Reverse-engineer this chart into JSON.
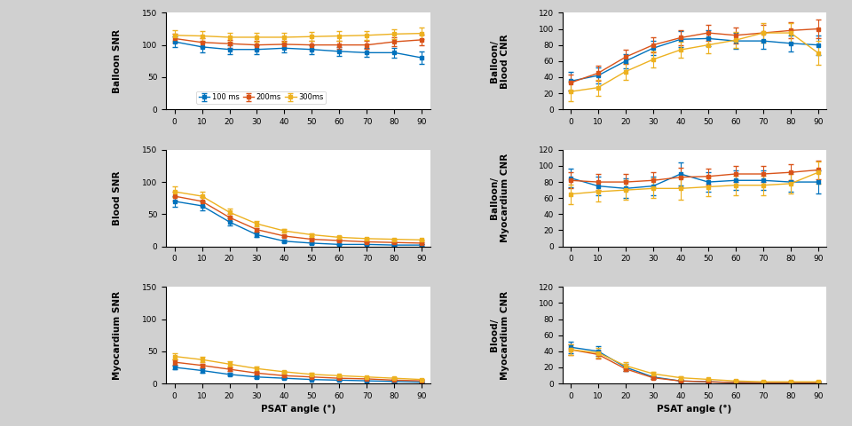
{
  "x": [
    0,
    10,
    20,
    30,
    40,
    50,
    60,
    70,
    80,
    90
  ],
  "colors": [
    "#0072BD",
    "#D95319",
    "#EDB120"
  ],
  "labels": [
    "100 ms",
    "200ms",
    "300ms"
  ],
  "balloon_snr": {
    "means": [
      [
        105,
        97,
        93,
        93,
        95,
        93,
        90,
        88,
        88,
        80
      ],
      [
        110,
        104,
        102,
        100,
        101,
        100,
        100,
        100,
        105,
        108
      ],
      [
        115,
        114,
        112,
        112,
        112,
        113,
        114,
        115,
        117,
        118
      ]
    ],
    "errs": [
      [
        8,
        8,
        7,
        7,
        7,
        7,
        7,
        7,
        8,
        10
      ],
      [
        7,
        7,
        6,
        6,
        6,
        6,
        6,
        6,
        7,
        8
      ],
      [
        8,
        7,
        7,
        7,
        7,
        7,
        7,
        7,
        8,
        9
      ]
    ]
  },
  "blood_snr": {
    "means": [
      [
        70,
        63,
        38,
        18,
        8,
        5,
        3,
        3,
        2,
        2
      ],
      [
        78,
        70,
        45,
        26,
        16,
        11,
        9,
        7,
        6,
        5
      ],
      [
        85,
        78,
        53,
        35,
        24,
        18,
        14,
        12,
        11,
        10
      ]
    ],
    "errs": [
      [
        8,
        7,
        5,
        3,
        2,
        1,
        1,
        1,
        1,
        1
      ],
      [
        7,
        7,
        5,
        3,
        2,
        2,
        1,
        1,
        1,
        1
      ],
      [
        8,
        7,
        6,
        4,
        3,
        2,
        2,
        1,
        1,
        1
      ]
    ]
  },
  "myocardium_snr": {
    "means": [
      [
        25,
        20,
        14,
        10,
        8,
        6,
        5,
        4,
        3,
        2
      ],
      [
        33,
        28,
        22,
        16,
        12,
        10,
        8,
        7,
        5,
        4
      ],
      [
        42,
        37,
        30,
        23,
        18,
        14,
        12,
        10,
        8,
        6
      ]
    ],
    "errs": [
      [
        3,
        3,
        2,
        2,
        1,
        1,
        1,
        1,
        1,
        1
      ],
      [
        4,
        3,
        3,
        2,
        2,
        1,
        1,
        1,
        1,
        1
      ],
      [
        5,
        4,
        4,
        3,
        2,
        2,
        1,
        1,
        1,
        1
      ]
    ]
  },
  "balloon_blood_cnr": {
    "means": [
      [
        35,
        42,
        60,
        76,
        87,
        88,
        85,
        85,
        82,
        80
      ],
      [
        33,
        45,
        65,
        80,
        89,
        95,
        92,
        95,
        98,
        100
      ],
      [
        22,
        27,
        47,
        62,
        74,
        80,
        86,
        95,
        95,
        70
      ]
    ],
    "errs": [
      [
        12,
        10,
        9,
        9,
        10,
        10,
        10,
        10,
        10,
        12
      ],
      [
        10,
        9,
        9,
        9,
        9,
        10,
        10,
        10,
        10,
        12
      ],
      [
        12,
        10,
        10,
        10,
        10,
        10,
        10,
        12,
        12,
        15
      ]
    ]
  },
  "balloon_myocardium_cnr": {
    "means": [
      [
        85,
        75,
        72,
        75,
        90,
        80,
        82,
        82,
        80,
        80
      ],
      [
        82,
        80,
        80,
        82,
        86,
        87,
        90,
        90,
        92,
        95
      ],
      [
        65,
        68,
        70,
        72,
        72,
        74,
        76,
        76,
        78,
        92
      ]
    ],
    "errs": [
      [
        12,
        12,
        12,
        12,
        14,
        12,
        12,
        12,
        12,
        14
      ],
      [
        10,
        10,
        10,
        10,
        12,
        10,
        10,
        10,
        10,
        12
      ],
      [
        12,
        12,
        12,
        12,
        14,
        12,
        12,
        12,
        12,
        14
      ]
    ]
  },
  "blood_myocardium_cnr": {
    "means": [
      [
        45,
        40,
        20,
        8,
        3,
        2,
        1,
        1,
        1,
        1
      ],
      [
        42,
        36,
        18,
        7,
        3,
        2,
        1,
        1,
        1,
        1
      ],
      [
        42,
        38,
        22,
        12,
        7,
        5,
        3,
        2,
        2,
        2
      ]
    ],
    "errs": [
      [
        7,
        6,
        4,
        2,
        1,
        1,
        1,
        1,
        1,
        1
      ],
      [
        7,
        5,
        3,
        2,
        1,
        1,
        1,
        1,
        1,
        1
      ],
      [
        7,
        6,
        4,
        2,
        2,
        1,
        1,
        1,
        1,
        1
      ]
    ]
  },
  "ylim_snr": [
    0,
    150
  ],
  "ylim_cnr": [
    0,
    120
  ],
  "yticks_snr": [
    0,
    50,
    100,
    150
  ],
  "yticks_cnr": [
    0,
    20,
    40,
    60,
    80,
    100,
    120
  ],
  "xticks": [
    0,
    10,
    20,
    30,
    40,
    50,
    60,
    70,
    80,
    90
  ],
  "bg_color": "#d0d0d0",
  "panel_bg": "#ffffff"
}
